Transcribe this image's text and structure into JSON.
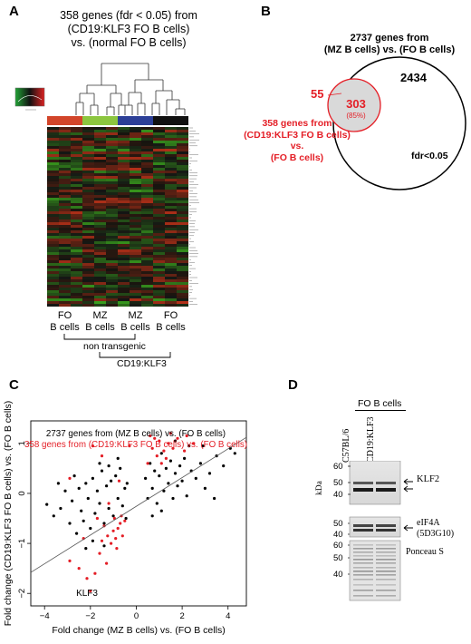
{
  "panels": {
    "A": {
      "label": "A",
      "title_lines": [
        "358 genes (fdr < 0.05) from",
        "(CD19:KLF3 FO B cells)",
        "vs. (normal FO B cells)"
      ],
      "column_groups": [
        {
          "line1": "FO",
          "line2": "B cells",
          "color": "#d2452a"
        },
        {
          "line1": "MZ",
          "line2": "B cells",
          "color": "#8cc63f"
        },
        {
          "line1": "MZ",
          "line2": "B cells",
          "color": "#2c3f97"
        },
        {
          "line1": "FO",
          "line2": "B cells",
          "color": "#111111"
        }
      ],
      "bracket_nontransgenic": "non transgenic",
      "bracket_transgenic": "CD19:KLF3"
    },
    "B": {
      "label": "B",
      "big_circle_label_lines": [
        "2737 genes from",
        "(MZ B cells) vs. (FO B cells)"
      ],
      "small_circle_label_lines": [
        "358 genes from",
        "(CD19:KLF3 FO B cells)",
        "vs.",
        "(FO B cells)"
      ],
      "only_small": "55",
      "overlap": "303",
      "overlap_pct": "(85%)",
      "only_big": "2434",
      "threshold": "fdr<0.05",
      "colors": {
        "red": "#e41e26",
        "overlap_fill": "#d9d9d9"
      }
    },
    "C": {
      "label": "C",
      "legend_black": "2737 genes from (MZ B cells) vs. (FO B cells)",
      "legend_red": "358 genes from (CD19:KLF3 FO B cells) vs. (FO B cells)",
      "xlabel": "Fold change (MZ B cells) vs. (FO B cells)",
      "ylabel": "Fold change (CD19:KLF3 FO B cells) vs. (FO B cells)",
      "annotation": "KLF3",
      "chart_data": {
        "type": "scatter",
        "xlim": [
          -4.6,
          4.8
        ],
        "ylim": [
          -2.25,
          1.45
        ],
        "xticks": [
          -4,
          -2,
          0,
          2,
          4
        ],
        "yticks": [
          -2,
          -1,
          0,
          1
        ],
        "trendline": {
          "x": [
            -4.6,
            4.8
          ],
          "y": [
            -1.58,
            1.12
          ]
        },
        "series": [
          {
            "name": "2737 genes from (MZ B cells) vs. (FO B cells)",
            "color": "#000000",
            "points": [
              [
                -3.9,
                -0.22
              ],
              [
                -3.6,
                -0.45
              ],
              [
                -3.3,
                -0.3
              ],
              [
                -3.1,
                0.05
              ],
              [
                -2.9,
                -0.6
              ],
              [
                -2.8,
                -0.15
              ],
              [
                -2.6,
                -0.8
              ],
              [
                -2.5,
                0.1
              ],
              [
                -2.4,
                -0.35
              ],
              [
                -2.3,
                -0.55
              ],
              [
                -2.2,
                0.2
              ],
              [
                -2.1,
                -0.1
              ],
              [
                -2.0,
                -0.7
              ],
              [
                -1.9,
                0.3
              ],
              [
                -1.8,
                -0.4
              ],
              [
                -1.7,
                0.05
              ],
              [
                -1.6,
                -0.2
              ],
              [
                -1.5,
                0.45
              ],
              [
                -1.4,
                -0.6
              ],
              [
                -1.3,
                0.15
              ],
              [
                -1.2,
                -0.3
              ],
              [
                -1.1,
                0.25
              ],
              [
                -1.0,
                -0.45
              ],
              [
                -0.9,
                0.35
              ],
              [
                -0.8,
                -0.1
              ],
              [
                -0.7,
                0.5
              ],
              [
                -0.6,
                -0.25
              ],
              [
                -0.5,
                0.1
              ],
              [
                -0.45,
                -0.5
              ],
              [
                -0.4,
                0.2
              ],
              [
                -1.6,
                0.6
              ],
              [
                -1.2,
                0.55
              ],
              [
                -0.8,
                0.7
              ],
              [
                -2.7,
                0.35
              ],
              [
                -3.4,
                0.2
              ],
              [
                -1.9,
                -0.95
              ],
              [
                -1.4,
                -1.05
              ],
              [
                -2.2,
                -1.1
              ],
              [
                0.4,
                0.3
              ],
              [
                0.5,
                -0.1
              ],
              [
                0.6,
                0.6
              ],
              [
                0.7,
                0.1
              ],
              [
                0.8,
                0.45
              ],
              [
                0.9,
                -0.2
              ],
              [
                1.0,
                0.35
              ],
              [
                1.1,
                0.8
              ],
              [
                1.2,
                0.05
              ],
              [
                1.3,
                0.5
              ],
              [
                1.4,
                0.2
              ],
              [
                1.5,
                0.65
              ],
              [
                1.6,
                -0.1
              ],
              [
                1.7,
                0.4
              ],
              [
                1.8,
                0.15
              ],
              [
                1.9,
                0.55
              ],
              [
                2.0,
                0.25
              ],
              [
                2.1,
                0.7
              ],
              [
                2.2,
                -0.05
              ],
              [
                2.4,
                0.45
              ],
              [
                2.6,
                0.3
              ],
              [
                2.8,
                0.6
              ],
              [
                3.0,
                0.1
              ],
              [
                3.2,
                0.4
              ],
              [
                3.5,
                0.75
              ],
              [
                3.8,
                0.55
              ],
              [
                4.1,
                0.9
              ],
              [
                4.3,
                0.8
              ],
              [
                2.3,
                0.95
              ],
              [
                1.7,
                1.05
              ],
              [
                0.7,
                -0.45
              ],
              [
                1.1,
                -0.35
              ],
              [
                3.4,
                -0.1
              ],
              [
                2.9,
                0.95
              ]
            ]
          },
          {
            "name": "358 genes from (CD19:KLF3 FO B cells) vs. (FO B cells)",
            "color": "#e41e26",
            "points": [
              [
                -2.0,
                -1.95
              ],
              [
                -2.15,
                -1.7
              ],
              [
                -2.5,
                -1.5
              ],
              [
                -2.9,
                -1.35
              ],
              [
                -1.8,
                -1.6
              ],
              [
                -1.6,
                -1.2
              ],
              [
                -1.3,
                -1.4
              ],
              [
                -1.1,
                -1.0
              ],
              [
                -0.9,
                -0.9
              ],
              [
                -0.8,
                -0.7
              ],
              [
                -0.7,
                -0.6
              ],
              [
                -0.6,
                -0.85
              ],
              [
                -1.0,
                -0.75
              ],
              [
                -1.4,
                -0.65
              ],
              [
                -1.7,
                -0.5
              ],
              [
                -0.5,
                -0.55
              ],
              [
                -0.95,
                -0.5
              ],
              [
                -1.25,
                -0.85
              ],
              [
                -0.65,
                -0.45
              ],
              [
                -2.3,
                -0.9
              ],
              [
                -1.5,
                -0.95
              ],
              [
                -0.85,
                -1.1
              ],
              [
                0.5,
                0.6
              ],
              [
                0.7,
                0.9
              ],
              [
                0.9,
                0.75
              ],
              [
                1.0,
                1.05
              ],
              [
                1.2,
                0.85
              ],
              [
                1.1,
                0.6
              ],
              [
                0.8,
                1.1
              ],
              [
                1.4,
                1.0
              ],
              [
                1.6,
                0.9
              ],
              [
                0.6,
                1.15
              ],
              [
                1.3,
                0.7
              ],
              [
                1.8,
                1.1
              ],
              [
                2.2,
                1.15
              ],
              [
                2.5,
                1.0
              ],
              [
                2.1,
                0.85
              ],
              [
                1.5,
                1.2
              ],
              [
                -1.9,
                0.95
              ],
              [
                -1.5,
                0.75
              ],
              [
                -2.9,
                0.3
              ],
              [
                -0.3,
                0.95
              ],
              [
                -1.2,
                -0.2
              ],
              [
                -0.75,
                0.25
              ]
            ]
          }
        ]
      }
    },
    "D": {
      "label": "D",
      "header": "FO B cells",
      "lanes": [
        "C57BL/6",
        "CD19:KLF3"
      ],
      "kda_label": "kDa",
      "mw_top": [
        "60",
        "50",
        "40"
      ],
      "mw_mid": [
        "50",
        "40"
      ],
      "mw_bot": [
        "60",
        "50",
        "40"
      ],
      "band_klf2": "KLF2",
      "band_eif_line1": "eIF4A",
      "band_eif_line2": "(5D3G10)",
      "band_ponceau": "Ponceau S"
    }
  }
}
